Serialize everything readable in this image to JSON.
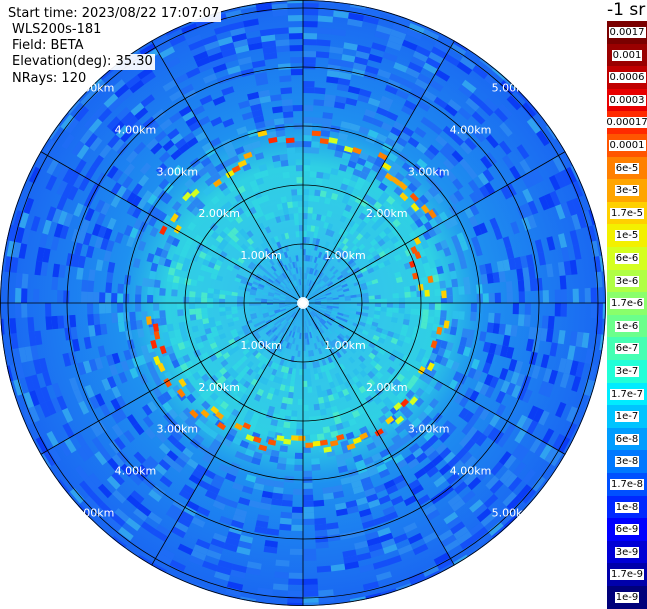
{
  "header": {
    "start_time": "Start time: 2023/08/22 17:07:07",
    "instrument": "WLS200s-181",
    "field": "Field: BETA",
    "elevation": "Elevation(deg): 35.30",
    "nrays": "NRays: 120",
    "unit": "-1 sr"
  },
  "range_rings": [
    "1.00km",
    "2.00km",
    "3.00km",
    "4.00km",
    "5.00km"
  ],
  "colorbar": [
    {
      "label": "0.0017",
      "color": "#7a0000"
    },
    {
      "label": "0.001",
      "color": "#9a0000"
    },
    {
      "label": "0.0006",
      "color": "#c00000"
    },
    {
      "label": "0.0003",
      "color": "#e80000"
    },
    {
      "label": "0.00017",
      "color": "#ff2a00"
    },
    {
      "label": "0.0001",
      "color": "#ff5500"
    },
    {
      "label": "6e-5",
      "color": "#ff8000"
    },
    {
      "label": "3e-5",
      "color": "#ffa500"
    },
    {
      "label": "1.7e-5",
      "color": "#ffd000"
    },
    {
      "label": "1e-5",
      "color": "#f3f000"
    },
    {
      "label": "6e-6",
      "color": "#d5ff1f"
    },
    {
      "label": "3e-6",
      "color": "#b0ff45"
    },
    {
      "label": "1.7e-6",
      "color": "#8aff6b"
    },
    {
      "label": "1e-6",
      "color": "#6bff8c"
    },
    {
      "label": "6e-7",
      "color": "#45ffb3"
    },
    {
      "label": "3e-7",
      "color": "#20ffd8"
    },
    {
      "label": "1.7e-7",
      "color": "#00ecff"
    },
    {
      "label": "1e-7",
      "color": "#00c4ff"
    },
    {
      "label": "6e-8",
      "color": "#009cff"
    },
    {
      "label": "3e-8",
      "color": "#0078ff"
    },
    {
      "label": "1.7e-8",
      "color": "#0050ff"
    },
    {
      "label": "1e-8",
      "color": "#0028ff"
    },
    {
      "label": "6e-9",
      "color": "#0000ff"
    },
    {
      "label": "3e-9",
      "color": "#0000d5"
    },
    {
      "label": "1.7e-9",
      "color": "#0000aa"
    },
    {
      "label": "1e-9",
      "color": "#00007a"
    }
  ]
}
